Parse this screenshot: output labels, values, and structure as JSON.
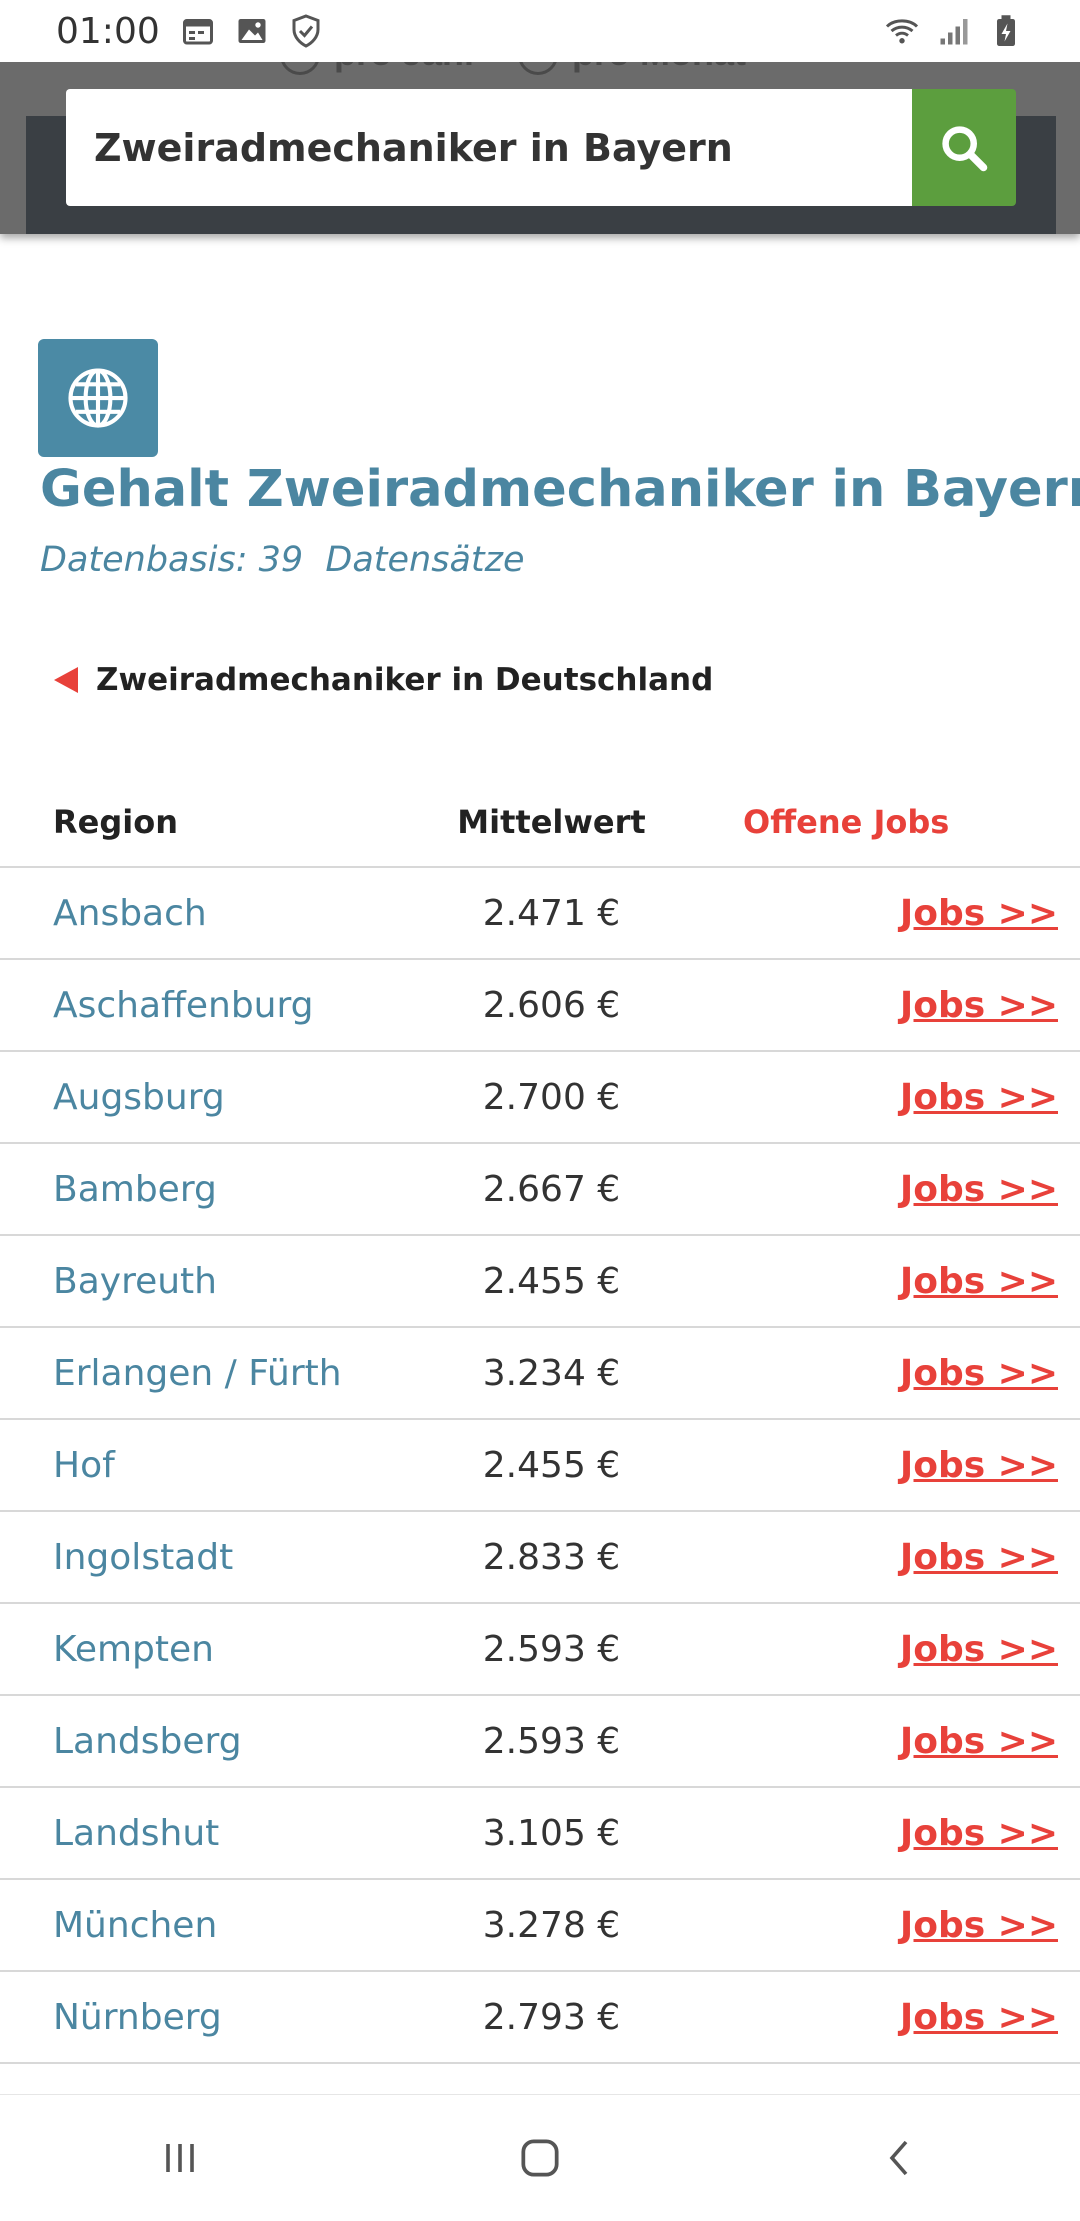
{
  "status_bar": {
    "time": "01:00",
    "icons": [
      "calendar-icon",
      "image-icon",
      "shield-icon",
      "wifi-icon",
      "signal-icon",
      "battery-charging-icon"
    ]
  },
  "search": {
    "value": "Zweiradmechaniker in Bayern",
    "ghost_options": [
      "pro Jahr",
      "pro Monat"
    ],
    "button_icon": "search-icon"
  },
  "heading": {
    "icon": "globe-icon",
    "title": "Gehalt Zweiradmechaniker in Bayern",
    "data_basis": "Datenbasis: 39  Datensätze"
  },
  "back_link": {
    "label": "Zweiradmechaniker in Deutschland"
  },
  "table": {
    "headers": {
      "region": "Region",
      "mean": "Mittelwert",
      "jobs": "Offene Jobs"
    },
    "rows": [
      {
        "region": "Ansbach",
        "mean": "2.471 €",
        "jobs": "Jobs >>"
      },
      {
        "region": "Aschaffenburg",
        "mean": "2.606 €",
        "jobs": "Jobs >>"
      },
      {
        "region": "Augsburg",
        "mean": "2.700 €",
        "jobs": "Jobs >>"
      },
      {
        "region": "Bamberg",
        "mean": "2.667 €",
        "jobs": "Jobs >>"
      },
      {
        "region": "Bayreuth",
        "mean": "2.455 €",
        "jobs": "Jobs >>"
      },
      {
        "region": "Erlangen / Fürth",
        "mean": "3.234 €",
        "jobs": "Jobs >>"
      },
      {
        "region": "Hof",
        "mean": "2.455 €",
        "jobs": "Jobs >>"
      },
      {
        "region": "Ingolstadt",
        "mean": "2.833 €",
        "jobs": "Jobs >>"
      },
      {
        "region": "Kempten",
        "mean": "2.593 €",
        "jobs": "Jobs >>"
      },
      {
        "region": "Landsberg",
        "mean": "2.593 €",
        "jobs": "Jobs >>"
      },
      {
        "region": "Landshut",
        "mean": "3.105 €",
        "jobs": "Jobs >>"
      },
      {
        "region": "München",
        "mean": "3.278 €",
        "jobs": "Jobs >>"
      },
      {
        "region": "Nürnberg",
        "mean": "2.793 €",
        "jobs": "Jobs >>"
      }
    ]
  },
  "nav_bar": {
    "buttons": [
      "recent-apps-icon",
      "home-icon",
      "back-icon"
    ]
  },
  "colors": {
    "accent_blue": "#4b86a1",
    "accent_red": "#e8413a",
    "search_green": "#5c9e3e"
  }
}
